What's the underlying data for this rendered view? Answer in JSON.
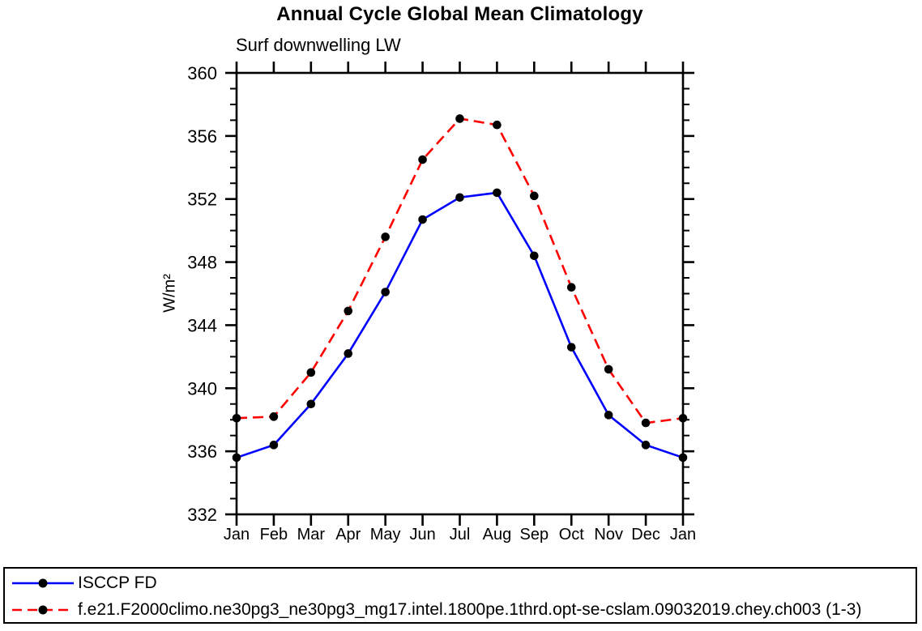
{
  "chart_data": {
    "type": "line",
    "title": "Annual Cycle Global Mean Climatology",
    "subtitle": "Surf downwelling LW",
    "ylabel": "W/m²",
    "xlabel": "",
    "categories": [
      "Jan",
      "Feb",
      "Mar",
      "Apr",
      "May",
      "Jun",
      "Jul",
      "Aug",
      "Sep",
      "Oct",
      "Nov",
      "Dec",
      "Jan"
    ],
    "ylim": [
      332,
      360
    ],
    "ytick_major_step": 4,
    "ytick_minor_step": 1,
    "grid": false,
    "legend_position": "bottom box, full width",
    "axis_color": "#000000",
    "marker_color": "#000000",
    "series": [
      {
        "name": "ISCCP FD",
        "color": "#0000ff",
        "line_style": "solid",
        "marker": "circle",
        "values": [
          335.6,
          336.4,
          339.0,
          342.2,
          346.1,
          350.7,
          352.1,
          352.4,
          348.4,
          342.6,
          338.3,
          336.4,
          335.6
        ]
      },
      {
        "name": "f.e21.F2000climo.ne30pg3_ne30pg3_mg17.intel.1800pe.1thrd.opt-se-cslam.09032019.chey.ch003 (1-3)",
        "color": "#ff0000",
        "line_style": "dashed",
        "marker": "circle",
        "values": [
          338.1,
          338.2,
          341.0,
          344.9,
          349.6,
          354.5,
          357.1,
          356.7,
          352.2,
          346.4,
          341.2,
          337.8,
          338.1
        ]
      }
    ]
  }
}
